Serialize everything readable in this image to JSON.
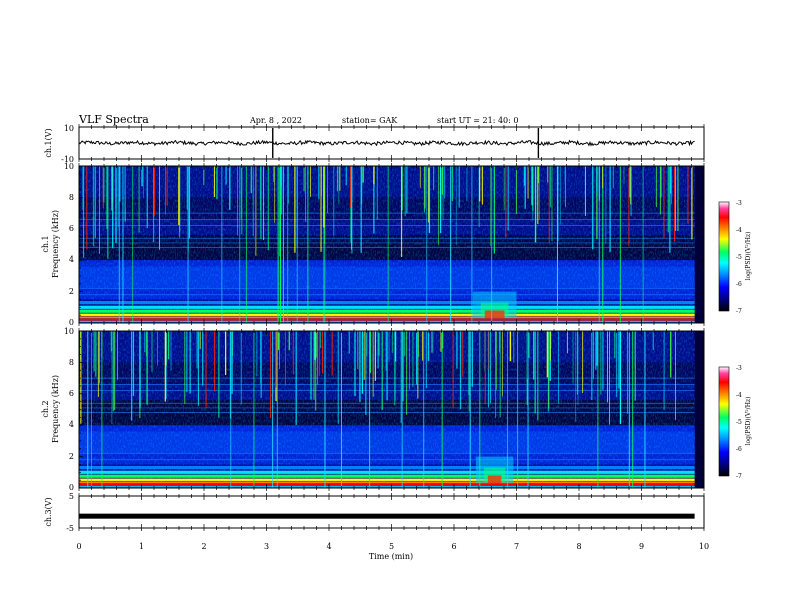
{
  "header": {
    "title": "VLF Spectra",
    "date": "Apr. 8  , 2022",
    "station": "station= GAK",
    "start": "start  UT  =   21: 40: 0"
  },
  "colors": {
    "scale": [
      "#000000",
      "#00007a",
      "#0000ff",
      "#0090ff",
      "#00ffff",
      "#00ff60",
      "#ffff00",
      "#ff8000",
      "#ff0000",
      "#ff40a0",
      "#ffffff"
    ]
  },
  "chart_data": [
    {
      "type": "line",
      "panel": "ch1-waveform",
      "ylabel": "ch.1(V)",
      "ylim": [
        -10,
        10
      ],
      "ytick_labels": [
        "10",
        "-10"
      ],
      "x_range_min": [
        0,
        9.85
      ],
      "approx_level_V": 0
    },
    {
      "type": "heatmap",
      "panel": "ch1-spectrogram",
      "ylabel_line1": "ch.1",
      "ylabel_line2": "Frequency  (kHz)",
      "ylim": [
        0,
        10
      ],
      "ytick_labels": [
        "0",
        "2",
        "4",
        "6",
        "8",
        "10"
      ],
      "colorbar": {
        "label": "log(PSD)(V²/Hz)",
        "range": [
          -7,
          -3
        ],
        "tick_labels": [
          "-3",
          "-4",
          "-5",
          "-6",
          "-7"
        ]
      },
      "features": {
        "low_band_khz": [
          0,
          1
        ],
        "hiss_band_khz": [
          1.5,
          4
        ],
        "enhancement_min": [
          6.3,
          7.0
        ]
      }
    },
    {
      "type": "heatmap",
      "panel": "ch2-spectrogram",
      "ylabel_line1": "ch.2",
      "ylabel_line2": "Frequency  (kHz)",
      "ylim": [
        0,
        10
      ],
      "ytick_labels": [
        "0",
        "2",
        "4",
        "6",
        "8",
        "10"
      ],
      "colorbar": {
        "label": "log(PSD)(V²/Hz)",
        "range": [
          -7,
          -3
        ],
        "tick_labels": [
          "-3",
          "-4",
          "-5",
          "-6",
          "-7"
        ]
      }
    },
    {
      "type": "line",
      "panel": "ch3-waveform",
      "ylabel": "ch.3(V)",
      "ylim": [
        -5,
        5
      ],
      "ytick_labels": [
        "5",
        "-5"
      ],
      "x_range_min": [
        0,
        9.85
      ],
      "approx_level_V": -1.3
    }
  ],
  "xaxis": {
    "label": "Time  (min)",
    "range": [
      0,
      10
    ],
    "tick_labels": [
      "0",
      "1",
      "2",
      "3",
      "4",
      "5",
      "6",
      "7",
      "8",
      "9",
      "10"
    ]
  }
}
